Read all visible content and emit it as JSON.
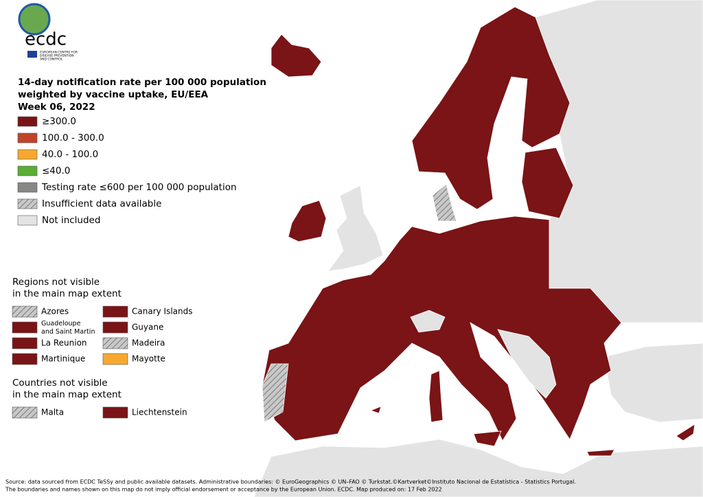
{
  "logo": {
    "name": "ecdc",
    "subtitle": [
      "EUROPEAN CENTRE FOR",
      "DISEASE PREVENTION",
      "AND CONTROL"
    ]
  },
  "title": [
    "14-day notification rate per 100 000 population",
    "weighted by vaccine uptake, EU/EEA",
    "Week 06, 2022"
  ],
  "legend": [
    {
      "label": "≥300.0",
      "color": "#7a1416"
    },
    {
      "label": "100.0 - 300.0",
      "color": "#c0442a"
    },
    {
      "label": "40.0 - 100.0",
      "color": "#f6a82f"
    },
    {
      "label": "≤40.0",
      "color": "#5aad35"
    },
    {
      "label": "Testing rate ≤600 per 100 000 population",
      "color": "#888888"
    },
    {
      "label": "Insufficient data available",
      "color": "#bdbdbd",
      "hatch": true
    },
    {
      "label": "Not included",
      "color": "#e3e3e3"
    }
  ],
  "regions": {
    "title": [
      "Regions not visible",
      "in the main map extent"
    ],
    "items": [
      {
        "label": "Azores",
        "color": "#bdbdbd",
        "hatch": true
      },
      {
        "label": "Canary Islands",
        "color": "#7a1416"
      },
      {
        "label": "Guadeloupe and Saint Martin",
        "color": "#7a1416"
      },
      {
        "label": "Guyane",
        "color": "#7a1416"
      },
      {
        "label": "La Reunion",
        "color": "#7a1416"
      },
      {
        "label": "Madeira",
        "color": "#bdbdbd",
        "hatch": true
      },
      {
        "label": "Martinique",
        "color": "#7a1416"
      },
      {
        "label": "Mayotte",
        "color": "#f6a82f"
      }
    ]
  },
  "countries": {
    "title": [
      "Countries not visible",
      "in the main map extent"
    ],
    "items": [
      {
        "label": "Malta",
        "color": "#bdbdbd",
        "hatch": true
      },
      {
        "label": "Liechtenstein",
        "color": "#7a1416"
      }
    ]
  },
  "source": [
    "Source: data sourced from ECDC TeSSy and public available datasets. Administrative boundaries: © EuroGeographics © UN–FAO © Turkstat.©Kartverket©Instituto Nacional de Estatística - Statistics Portugal.",
    "The boundaries and names shown on this map do not imply official endorsement or acceptance by the European Union. ECDC. Map produced on: 17 Feb 2022"
  ]
}
